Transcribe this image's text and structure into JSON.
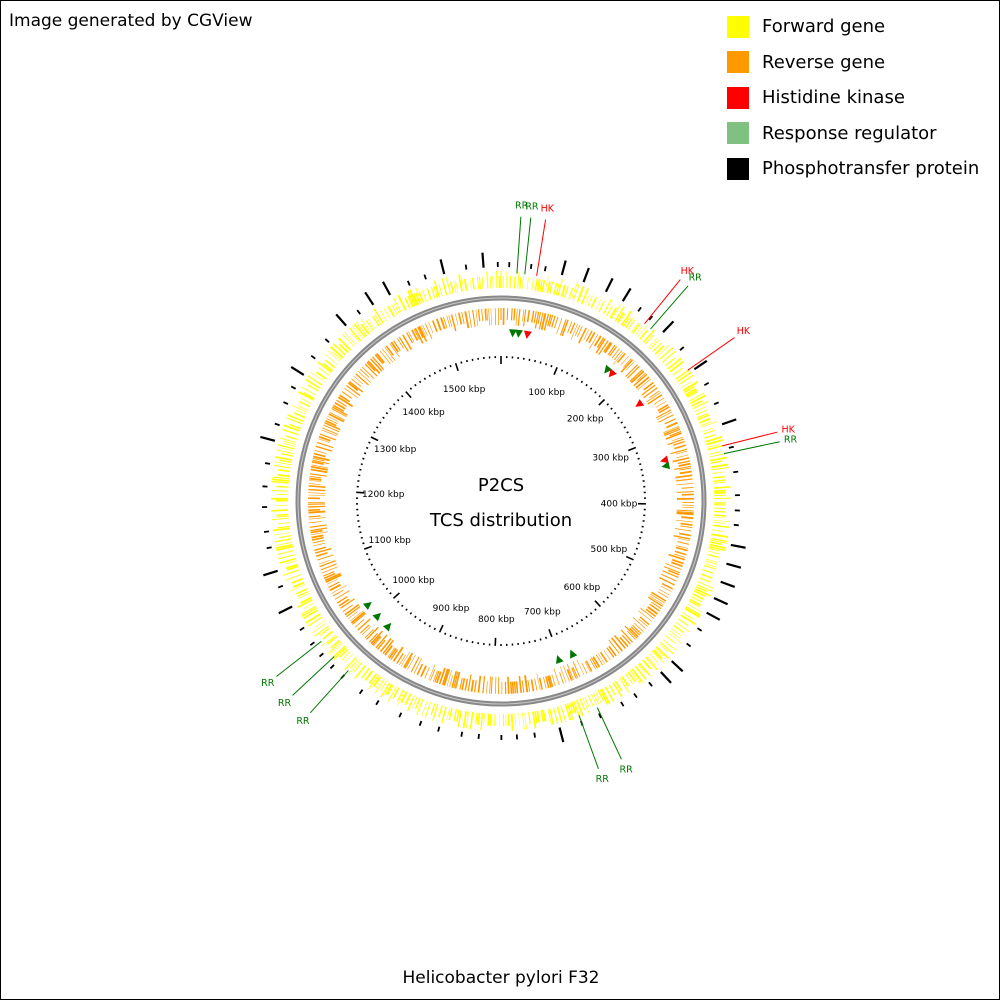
{
  "credit": "Image generated by CGView",
  "legend": [
    {
      "label": "Forward gene",
      "color": "#ffff00"
    },
    {
      "label": "Reverse gene",
      "color": "#ff9900"
    },
    {
      "label": "Histidine kinase",
      "color": "#ff0000"
    },
    {
      "label": "Response regulator",
      "color": "#80c080"
    },
    {
      "label": "Phosphotransfer protein",
      "color": "#000000"
    }
  ],
  "center": {
    "line1": "P2CS",
    "line2": "TCS distribution"
  },
  "organism": "Helicobacter pylori F32",
  "genome_length_kbp": 1580,
  "tick_labels": [
    "100 kbp",
    "200 kbp",
    "300 kbp",
    "400 kbp",
    "500 kbp",
    "600 kbp",
    "700 kbp",
    "800 kbp",
    "900 kbp",
    "1000 kbp",
    "1100 kbp",
    "1200 kbp",
    "1300 kbp",
    "1400 kbp",
    "1500 kbp"
  ],
  "feature_colors": {
    "HK": "#ff0000",
    "RR": "#007700",
    "PT": "#000000"
  },
  "features": [
    {
      "label": "RR",
      "angle": 4
    },
    {
      "label": "RR",
      "angle": 6
    },
    {
      "label": "HK",
      "angle": 9
    },
    {
      "label": "HK",
      "angle": 39
    },
    {
      "label": "RR",
      "angle": 41
    },
    {
      "label": "HK",
      "angle": 55
    },
    {
      "label": "HK",
      "angle": 76
    },
    {
      "label": "RR",
      "angle": 78
    },
    {
      "label": "RR",
      "angle": 155
    },
    {
      "label": "RR",
      "angle": 160
    },
    {
      "label": "RR",
      "angle": 222
    },
    {
      "label": "RR",
      "angle": 227
    },
    {
      "label": "RR",
      "angle": 232
    }
  ]
}
